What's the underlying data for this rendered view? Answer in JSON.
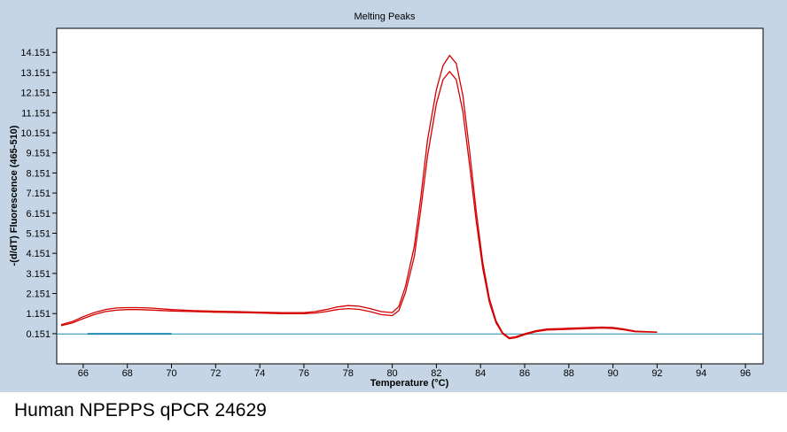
{
  "caption": "Human NPEPPS qPCR 24629",
  "chart_data": {
    "type": "line",
    "title": "Melting Peaks",
    "xlabel": "Temperature (°C)",
    "ylabel": "-(d/dT) Fluorescence (465-510)",
    "xlim": [
      64.8,
      96.8
    ],
    "ylim": [
      -1.35,
      15.35
    ],
    "x_ticks": [
      66,
      68,
      70,
      72,
      74,
      76,
      78,
      80,
      82,
      84,
      86,
      88,
      90,
      92,
      94,
      96
    ],
    "y_ticks": [
      0.151,
      1.151,
      2.151,
      3.151,
      4.151,
      5.151,
      6.151,
      7.151,
      8.151,
      9.151,
      10.151,
      11.151,
      12.151,
      13.151,
      14.151
    ],
    "x_tick_labels": [
      "66",
      "68",
      "70",
      "72",
      "74",
      "76",
      "78",
      "80",
      "82",
      "84",
      "86",
      "88",
      "90",
      "92",
      "94",
      "96"
    ],
    "y_tick_labels": [
      "0.151",
      "1.151",
      "2.151",
      "3.151",
      "4.151",
      "5.151",
      "6.151",
      "7.151",
      "8.151",
      "9.151",
      "10.151",
      "11.151",
      "12.151",
      "13.151",
      "14.151"
    ],
    "colors": {
      "sample": "#d40000",
      "baseline": "#1f8ab0",
      "plot_background": "#ffffff",
      "panel_background": "#c5d5e6"
    },
    "series": [
      {
        "color": "#d40000",
        "x": [
          65,
          65.5,
          66,
          66.5,
          67,
          67.5,
          68,
          68.5,
          69,
          70,
          71,
          72,
          73,
          74,
          75,
          76,
          76.5,
          77,
          77.5,
          78,
          78.5,
          79,
          79.5,
          80,
          80.3,
          80.6,
          81,
          81.3,
          81.6,
          82,
          82.3,
          82.6,
          82.9,
          83.2,
          83.5,
          83.8,
          84.1,
          84.4,
          84.7,
          85,
          85.3,
          85.6,
          86,
          86.5,
          87,
          88,
          89,
          89.5,
          90,
          90.5,
          91,
          92
        ],
        "y": [
          0.6,
          0.75,
          1.0,
          1.2,
          1.35,
          1.43,
          1.45,
          1.45,
          1.43,
          1.35,
          1.3,
          1.27,
          1.25,
          1.22,
          1.2,
          1.2,
          1.25,
          1.35,
          1.48,
          1.55,
          1.52,
          1.4,
          1.25,
          1.2,
          1.5,
          2.5,
          4.5,
          7.0,
          9.8,
          12.3,
          13.5,
          14.0,
          13.6,
          12.0,
          9.3,
          6.3,
          3.7,
          1.9,
          0.8,
          0.2,
          -0.05,
          0.0,
          0.15,
          0.3,
          0.38,
          0.42,
          0.46,
          0.48,
          0.46,
          0.38,
          0.28,
          0.23
        ]
      },
      {
        "color": "#d40000",
        "x": [
          65,
          65.5,
          66,
          66.5,
          67,
          67.5,
          68,
          68.5,
          69,
          70,
          71,
          72,
          73,
          74,
          75,
          76,
          76.5,
          77,
          77.5,
          78,
          78.5,
          79,
          79.5,
          80,
          80.3,
          80.6,
          81,
          81.3,
          81.6,
          82,
          82.3,
          82.6,
          82.9,
          83.2,
          83.5,
          83.8,
          84.1,
          84.4,
          84.7,
          85,
          85.3,
          85.6,
          86,
          86.5,
          87,
          88,
          89,
          89.5,
          90,
          90.5,
          91,
          92
        ],
        "y": [
          0.55,
          0.68,
          0.9,
          1.1,
          1.25,
          1.32,
          1.35,
          1.35,
          1.33,
          1.28,
          1.25,
          1.22,
          1.2,
          1.18,
          1.15,
          1.15,
          1.18,
          1.25,
          1.35,
          1.4,
          1.36,
          1.25,
          1.1,
          1.05,
          1.3,
          2.2,
          4.0,
          6.4,
          9.0,
          11.6,
          12.8,
          13.2,
          12.8,
          11.2,
          8.6,
          5.8,
          3.4,
          1.7,
          0.7,
          0.15,
          -0.1,
          -0.05,
          0.1,
          0.25,
          0.33,
          0.37,
          0.41,
          0.43,
          0.41,
          0.34,
          0.25,
          0.22
        ]
      },
      {
        "color": "#1f8ab0",
        "x": [
          64.8,
          96.8
        ],
        "y": [
          0.14,
          0.14
        ]
      }
    ],
    "highlight_segment": {
      "color": "#1f8ab0",
      "x": [
        66.2,
        70
      ],
      "y": 0.14
    },
    "grid": false,
    "legend": "none"
  }
}
